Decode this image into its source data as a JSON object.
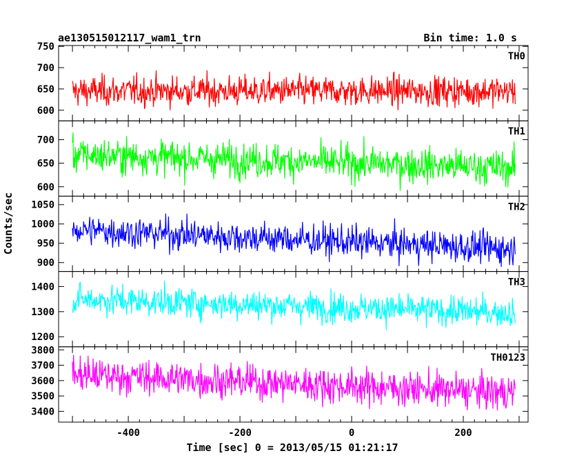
{
  "header": {
    "title": "ae130515012117_wam1_trn",
    "bin_time": "Bin time: 1.0 s"
  },
  "chart_data": {
    "type": "line",
    "xlabel": "Time [sec] 0 = 2013/05/15 01:21:17",
    "ylabel": "Counts/sec",
    "xlim": [
      -510,
      300
    ],
    "x_ticks": [
      -400,
      -200,
      0,
      200
    ],
    "x_range_data": [
      -500,
      293
    ],
    "bin_seconds": 1.0,
    "panels": [
      {
        "name": "TH0",
        "color": "#ff0000",
        "ylim": [
          575,
          752
        ],
        "ticks": [
          600,
          650,
          700,
          750
        ],
        "trend": {
          "start": 645,
          "end": 645
        },
        "scatter_sd": 25,
        "min_observed": 575,
        "max_observed": 752
      },
      {
        "name": "TH1",
        "color": "#00ff00",
        "ylim": [
          580,
          740
        ],
        "ticks": [
          600,
          650,
          700
        ],
        "trend": {
          "start": 668,
          "end": 640
        },
        "scatter_sd": 26,
        "min_observed": 580,
        "max_observed": 740
      },
      {
        "name": "TH2",
        "color": "#0000ff",
        "ylim": [
          877,
          1072
        ],
        "ticks": [
          900,
          950,
          1000,
          1050
        ],
        "trend": {
          "start": 985,
          "end": 935
        },
        "scatter_sd": 29,
        "min_observed": 877,
        "max_observed": 1072
      },
      {
        "name": "TH3",
        "color": "#00ffff",
        "ylim": [
          1160,
          1460
        ],
        "ticks": [
          1200,
          1300,
          1400
        ],
        "trend": {
          "start": 1350,
          "end": 1295
        },
        "scatter_sd": 42,
        "min_observed": 1160,
        "max_observed": 1460
      },
      {
        "name": "TH0123",
        "color": "#ff00ff",
        "ylim": [
          3330,
          3820
        ],
        "ticks": [
          3400,
          3500,
          3600,
          3700,
          3800
        ],
        "trend": {
          "start": 3640,
          "end": 3520
        },
        "scatter_sd": 80,
        "min_observed": 3330,
        "max_observed": 3820
      }
    ]
  }
}
